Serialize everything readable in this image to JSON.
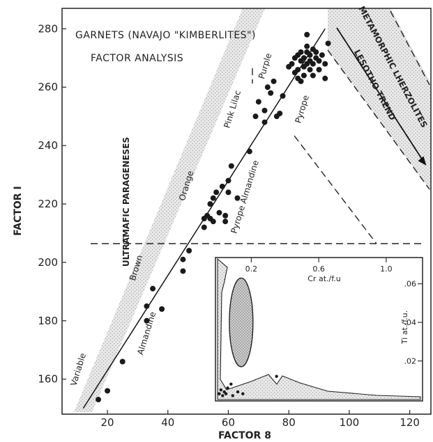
{
  "chart_data": {
    "type": "scatter",
    "title": "GARNETS (NAVAJO \"KIMBERLITES\")",
    "subtitle": "FACTOR ANALYSIS",
    "xlabel": "FACTOR 8",
    "ylabel": "FACTOR I",
    "xlim": [
      5,
      127
    ],
    "ylim": [
      148,
      287
    ],
    "x_ticks": [
      "20",
      "40",
      "60",
      "80",
      "100",
      "120"
    ],
    "y_ticks": [
      "160",
      "180",
      "200",
      "220",
      "240",
      "260",
      "280"
    ],
    "grid": false,
    "trend_line": [
      [
        12,
        150
      ],
      [
        92,
        280
      ]
    ],
    "ultramafic_line_y": 207,
    "annotations": {
      "ultramafic": "ULTRAMAFIC PARAGENESES",
      "variable": "Variable",
      "brown": "Brown",
      "orange": "Orange",
      "pink_lilac": "Pink Lilac",
      "purple": "Purple",
      "almandine_lower": "Almandine",
      "pyrope_almandine": "Pyrope  Almandine",
      "pyrope": "Pyrope",
      "metamorphic": "METAMORPHIC LHERZOLITES",
      "lesotho": "LESOTHO TREND"
    },
    "points": [
      {
        "x": 17,
        "y": 153
      },
      {
        "x": 20,
        "y": 156
      },
      {
        "x": 25,
        "y": 166
      },
      {
        "x": 33,
        "y": 180
      },
      {
        "x": 33,
        "y": 185
      },
      {
        "x": 35,
        "y": 191
      },
      {
        "x": 38,
        "y": 184
      },
      {
        "x": 45,
        "y": 197
      },
      {
        "x": 45,
        "y": 201
      },
      {
        "x": 47,
        "y": 204
      },
      {
        "x": 52,
        "y": 212
      },
      {
        "x": 52,
        "y": 215
      },
      {
        "x": 53,
        "y": 216
      },
      {
        "x": 54,
        "y": 215
      },
      {
        "x": 55,
        "y": 214
      },
      {
        "x": 54,
        "y": 220
      },
      {
        "x": 55,
        "y": 222
      },
      {
        "x": 56,
        "y": 224
      },
      {
        "x": 57,
        "y": 217
      },
      {
        "x": 58,
        "y": 226
      },
      {
        "x": 59,
        "y": 216
      },
      {
        "x": 59,
        "y": 214
      },
      {
        "x": 60,
        "y": 228
      },
      {
        "x": 60,
        "y": 224
      },
      {
        "x": 61,
        "y": 233
      },
      {
        "x": 63,
        "y": 222
      },
      {
        "x": 67,
        "y": 238
      },
      {
        "x": 69,
        "y": 250
      },
      {
        "x": 70,
        "y": 255
      },
      {
        "x": 72,
        "y": 248
      },
      {
        "x": 72,
        "y": 252
      },
      {
        "x": 73,
        "y": 260
      },
      {
        "x": 74,
        "y": 258
      },
      {
        "x": 75,
        "y": 262
      },
      {
        "x": 76,
        "y": 250
      },
      {
        "x": 77,
        "y": 251
      },
      {
        "x": 78,
        "y": 257
      },
      {
        "x": 80,
        "y": 267
      },
      {
        "x": 81,
        "y": 268
      },
      {
        "x": 82,
        "y": 265
      },
      {
        "x": 82,
        "y": 270
      },
      {
        "x": 83,
        "y": 271
      },
      {
        "x": 83,
        "y": 266
      },
      {
        "x": 84,
        "y": 269
      },
      {
        "x": 84,
        "y": 272
      },
      {
        "x": 85,
        "y": 267
      },
      {
        "x": 85,
        "y": 264
      },
      {
        "x": 85,
        "y": 270
      },
      {
        "x": 86,
        "y": 272
      },
      {
        "x": 86,
        "y": 268
      },
      {
        "x": 86,
        "y": 274
      },
      {
        "x": 87,
        "y": 269
      },
      {
        "x": 87,
        "y": 266
      },
      {
        "x": 87,
        "y": 271
      },
      {
        "x": 88,
        "y": 273
      },
      {
        "x": 88,
        "y": 268
      },
      {
        "x": 88,
        "y": 264
      },
      {
        "x": 89,
        "y": 270
      },
      {
        "x": 89,
        "y": 272
      },
      {
        "x": 90,
        "y": 269
      },
      {
        "x": 90,
        "y": 266
      },
      {
        "x": 91,
        "y": 271
      },
      {
        "x": 92,
        "y": 268
      },
      {
        "x": 86,
        "y": 278
      },
      {
        "x": 93,
        "y": 275
      },
      {
        "x": 92,
        "y": 263
      },
      {
        "x": 84,
        "y": 262
      },
      {
        "x": 83,
        "y": 263
      }
    ],
    "inset": {
      "xlabel": "Cr  at./f.u",
      "ylabel": "Ti  at./f.u.",
      "x_ticks": [
        "0.2",
        "0.6",
        "1.0"
      ],
      "y_ticks": [
        ".06",
        ".04",
        ".02"
      ],
      "xlim": [
        0,
        1.05
      ],
      "ylim": [
        0,
        0.07
      ],
      "ellipse": {
        "cx": 0.14,
        "cy": 0.04,
        "rx": 0.07,
        "ry": 0.023
      },
      "points": [
        {
          "x": 0.01,
          "y": 0.003
        },
        {
          "x": 0.02,
          "y": 0.005
        },
        {
          "x": 0.03,
          "y": 0.002
        },
        {
          "x": 0.04,
          "y": 0.004
        },
        {
          "x": 0.05,
          "y": 0.003
        },
        {
          "x": 0.06,
          "y": 0.006
        },
        {
          "x": 0.08,
          "y": 0.008
        },
        {
          "x": 0.09,
          "y": 0.002
        },
        {
          "x": 0.12,
          "y": 0.004
        },
        {
          "x": 0.15,
          "y": 0.003
        },
        {
          "x": 0.35,
          "y": 0.012
        }
      ]
    }
  }
}
